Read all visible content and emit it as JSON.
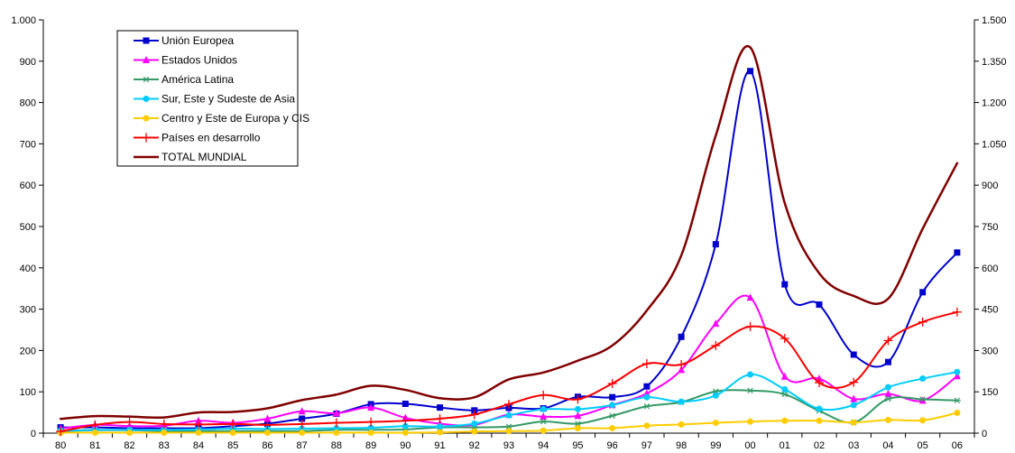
{
  "chart_data": {
    "type": "line",
    "categories": [
      "80",
      "81",
      "82",
      "83",
      "84",
      "85",
      "86",
      "87",
      "88",
      "89",
      "90",
      "91",
      "92",
      "93",
      "94",
      "95",
      "96",
      "97",
      "98",
      "99",
      "00",
      "01",
      "02",
      "03",
      "04",
      "05",
      "06"
    ],
    "y_left": {
      "ylim": [
        0,
        1000
      ],
      "ticks": [
        0,
        100,
        200,
        300,
        400,
        500,
        600,
        700,
        800,
        900,
        1000
      ],
      "tick_labels": [
        "0",
        "100",
        "200",
        "300",
        "400",
        "500",
        "600",
        "700",
        "800",
        "900",
        "1.000"
      ]
    },
    "y_right": {
      "ylim": [
        0,
        1500
      ],
      "ticks": [
        0,
        150,
        300,
        450,
        600,
        750,
        900,
        1050,
        1200,
        1350,
        1500
      ],
      "tick_labels": [
        "0",
        "150",
        "300",
        "450",
        "600",
        "750",
        "900",
        "1.050",
        "1.200",
        "1.350",
        "1.500"
      ]
    },
    "grid": false,
    "legend_position": "top-left",
    "series": [
      {
        "name": "Unión Europea",
        "color": "#0000CC",
        "marker": "square",
        "axis": "left",
        "values": [
          14,
          14,
          12,
          12,
          12,
          17,
          23,
          35,
          47,
          70,
          71,
          62,
          55,
          61,
          60,
          88,
          87,
          113,
          233,
          457,
          876,
          360,
          311,
          190,
          172,
          341,
          437
        ]
      },
      {
        "name": "Estados Unidos",
        "color": "#FF00FF",
        "marker": "triangle",
        "axis": "left",
        "values": [
          11,
          20,
          17,
          18,
          30,
          25,
          35,
          53,
          48,
          62,
          37,
          23,
          20,
          45,
          40,
          42,
          68,
          96,
          153,
          265,
          328,
          137,
          132,
          83,
          95,
          79,
          138
        ]
      },
      {
        "name": "América Latina",
        "color": "#339966",
        "marker": "asterisk",
        "axis": "left",
        "values": [
          5,
          7,
          7,
          5,
          5,
          5,
          5,
          5,
          8,
          8,
          9,
          14,
          14,
          16,
          28,
          23,
          42,
          65,
          75,
          101,
          103,
          94,
          54,
          26,
          83,
          82,
          79
        ]
      },
      {
        "name": "Sur, Este y Sudeste de Asia",
        "color": "#00CCFF",
        "marker": "circle",
        "axis": "left",
        "values": [
          6,
          8,
          8,
          8,
          9,
          11,
          10,
          11,
          12,
          13,
          17,
          16,
          23,
          43,
          58,
          58,
          68,
          87,
          76,
          91,
          142,
          106,
          59,
          68,
          111,
          132,
          148
        ]
      },
      {
        "name": "Centro y Este de Europa y CIS",
        "color": "#FFCC00",
        "marker": "circle",
        "axis": "left",
        "values": [
          1,
          1,
          1,
          1,
          1,
          1,
          1,
          1,
          1,
          1,
          1,
          2,
          4,
          5,
          6,
          12,
          12,
          18,
          21,
          25,
          28,
          30,
          30,
          26,
          32,
          31,
          49
        ]
      },
      {
        "name": "Países en desarrollo",
        "color": "#FF0000",
        "marker": "plus",
        "axis": "left",
        "values": [
          4,
          20,
          27,
          22,
          21,
          22,
          20,
          22,
          25,
          27,
          30,
          35,
          45,
          70,
          92,
          82,
          120,
          168,
          166,
          212,
          258,
          229,
          122,
          123,
          224,
          269,
          293
        ]
      },
      {
        "name": "TOTAL MUNDIAL",
        "color": "#800000",
        "marker": "none",
        "axis": "right",
        "values": [
          52,
          62,
          60,
          57,
          75,
          77,
          90,
          120,
          140,
          172,
          157,
          127,
          130,
          195,
          220,
          263,
          318,
          445,
          645,
          1080,
          1400,
          835,
          580,
          498,
          488,
          742,
          980
        ]
      }
    ]
  }
}
